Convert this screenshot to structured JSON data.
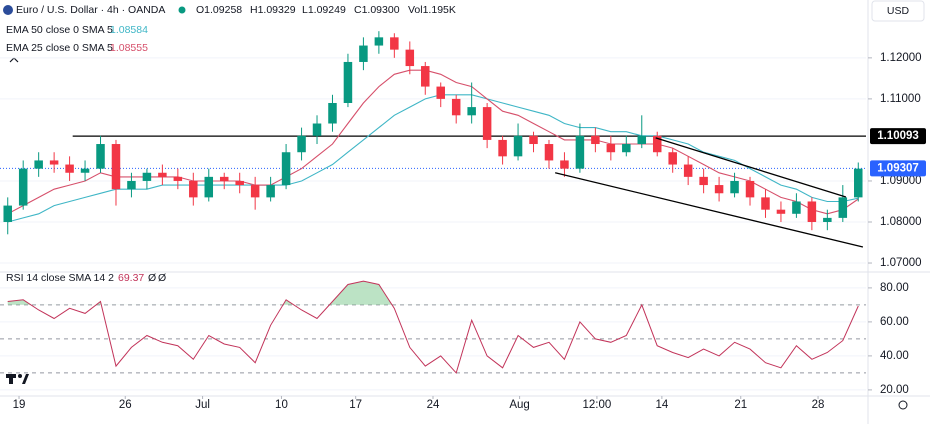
{
  "chart_data": [
    {
      "type": "candlestick",
      "title": "Euro / U.S. Dollar · 4h · OANDA",
      "quote": [
        "O1.09258",
        "H1.09329",
        "L1.09249",
        "C1.09300",
        "Vol1.195K"
      ],
      "currency": "USD",
      "up_color": "#089981",
      "down_color": "#f23645",
      "open": [
        1.08,
        1.084,
        1.093,
        1.095,
        1.094,
        1.092,
        1.093,
        1.099,
        1.088,
        1.09,
        1.092,
        1.091,
        1.09,
        1.086,
        1.091,
        1.09,
        1.089,
        1.086,
        1.089,
        1.097,
        1.101,
        1.104,
        1.109,
        1.119,
        1.123,
        1.125,
        1.122,
        1.118,
        1.113,
        1.11,
        1.106,
        1.108,
        1.1,
        1.096,
        1.101,
        1.099,
        1.095,
        1.093,
        1.101,
        1.099,
        1.097,
        1.099,
        1.101,
        1.097,
        1.094,
        1.091,
        1.089,
        1.087,
        1.09,
        1.086,
        1.083,
        1.082,
        1.085,
        1.08,
        1.081,
        1.086
      ],
      "high": [
        1.086,
        1.095,
        1.097,
        1.097,
        1.096,
        1.095,
        1.101,
        1.1,
        1.092,
        1.093,
        1.094,
        1.093,
        1.092,
        1.093,
        1.092,
        1.092,
        1.091,
        1.091,
        1.099,
        1.103,
        1.106,
        1.111,
        1.121,
        1.125,
        1.1265,
        1.126,
        1.124,
        1.119,
        1.114,
        1.111,
        1.114,
        1.109,
        1.101,
        1.104,
        1.102,
        1.1,
        1.097,
        1.104,
        1.103,
        1.101,
        1.101,
        1.106,
        1.102,
        1.098,
        1.096,
        1.093,
        1.091,
        1.092,
        1.091,
        1.088,
        1.085,
        1.087,
        1.086,
        1.083,
        1.089,
        1.0945
      ],
      "low": [
        1.077,
        1.083,
        1.091,
        1.092,
        1.09,
        1.09,
        1.092,
        1.084,
        1.086,
        1.088,
        1.089,
        1.088,
        1.084,
        1.085,
        1.088,
        1.087,
        1.083,
        1.085,
        1.088,
        1.095,
        1.099,
        1.102,
        1.108,
        1.117,
        1.121,
        1.12,
        1.116,
        1.111,
        1.108,
        1.104,
        1.104,
        1.098,
        1.094,
        1.095,
        1.097,
        1.093,
        1.091,
        1.092,
        1.097,
        1.095,
        1.096,
        1.098,
        1.096,
        1.092,
        1.089,
        1.087,
        1.085,
        1.086,
        1.084,
        1.081,
        1.08,
        1.081,
        1.078,
        1.078,
        1.08,
        1.085
      ],
      "close": [
        1.084,
        1.093,
        1.095,
        1.094,
        1.092,
        1.093,
        1.099,
        1.088,
        1.09,
        1.092,
        1.091,
        1.09,
        1.086,
        1.091,
        1.09,
        1.089,
        1.086,
        1.089,
        1.097,
        1.101,
        1.104,
        1.109,
        1.119,
        1.123,
        1.125,
        1.122,
        1.118,
        1.113,
        1.11,
        1.106,
        1.108,
        1.1,
        1.096,
        1.101,
        1.099,
        1.095,
        1.093,
        1.101,
        1.099,
        1.097,
        1.099,
        1.101,
        1.097,
        1.094,
        1.091,
        1.089,
        1.087,
        1.09,
        1.086,
        1.083,
        1.082,
        1.085,
        1.08,
        1.081,
        1.086,
        1.093
      ],
      "series": [
        {
          "name": "EMA 50 close 0 SMA 5",
          "last": "1.08584",
          "color": "#3fb6c6",
          "values": [
            1.08,
            1.081,
            1.082,
            1.084,
            1.085,
            1.086,
            1.087,
            1.088,
            1.088,
            1.088,
            1.089,
            1.089,
            1.089,
            1.089,
            1.089,
            1.089,
            1.089,
            1.089,
            1.089,
            1.09,
            1.092,
            1.094,
            1.097,
            1.1,
            1.103,
            1.106,
            1.108,
            1.11,
            1.111,
            1.111,
            1.111,
            1.11,
            1.109,
            1.108,
            1.107,
            1.106,
            1.104,
            1.103,
            1.103,
            1.102,
            1.102,
            1.101,
            1.101,
            1.1,
            1.099,
            1.097,
            1.096,
            1.095,
            1.093,
            1.091,
            1.089,
            1.088,
            1.086,
            1.085,
            1.085,
            1.0858
          ]
        },
        {
          "name": "EMA 25 close 0 SMA 5",
          "last": "1.08555",
          "color": "#d6506b",
          "values": [
            1.082,
            1.084,
            1.086,
            1.088,
            1.089,
            1.09,
            1.092,
            1.091,
            1.091,
            1.091,
            1.091,
            1.091,
            1.09,
            1.09,
            1.09,
            1.09,
            1.089,
            1.089,
            1.091,
            1.093,
            1.096,
            1.099,
            1.104,
            1.109,
            1.113,
            1.116,
            1.117,
            1.117,
            1.116,
            1.114,
            1.113,
            1.11,
            1.107,
            1.106,
            1.104,
            1.102,
            1.1,
            1.1,
            1.1,
            1.099,
            1.099,
            1.099,
            1.099,
            1.098,
            1.096,
            1.094,
            1.092,
            1.091,
            1.09,
            1.088,
            1.086,
            1.085,
            1.083,
            1.082,
            1.083,
            1.0856
          ]
        }
      ],
      "xlim": [
        -0.5,
        55.5
      ],
      "xticks": [
        {
          "value": 0.73,
          "label": "19"
        },
        {
          "value": 7.6,
          "label": "26"
        },
        {
          "value": 12.6,
          "label": "Jul"
        },
        {
          "value": 17.7,
          "label": "10"
        },
        {
          "value": 22.5,
          "label": "17"
        },
        {
          "value": 27.5,
          "label": "24"
        },
        {
          "value": 33.1,
          "label": "Aug"
        },
        {
          "value": 38.1,
          "label": "12:00"
        },
        {
          "value": 42.3,
          "label": "14"
        },
        {
          "value": 47.4,
          "label": "21"
        },
        {
          "value": 52.4,
          "label": "28"
        }
      ],
      "ylim": [
        1.0683,
        1.1341
      ],
      "yticks": [
        {
          "value": 1.12,
          "label": "1.12000"
        },
        {
          "value": 1.11,
          "label": "1.11000"
        },
        {
          "value": 1.09,
          "label": "1.09000"
        },
        {
          "value": 1.08,
          "label": "1.08000"
        },
        {
          "value": 1.07,
          "label": "1.07000"
        }
      ],
      "hlines": [
        {
          "value": 1.10093,
          "label": "1.10093",
          "color": "#000000",
          "style": "solid",
          "x_start": 4.2
        },
        {
          "value": 1.09307,
          "label": "1.09307",
          "color": "#2962ff",
          "style": "dotted",
          "x_start": -0.5
        }
      ],
      "trendlines": [
        {
          "x": [
            41.9,
            54.2
          ],
          "y": [
            1.1005,
            1.0861
          ],
          "color": "#000000"
        },
        {
          "x": [
            35.4,
            55.3
          ],
          "y": [
            1.092,
            1.0739
          ],
          "color": "#000000"
        }
      ]
    },
    {
      "type": "line",
      "title": "RSI 14 close SMA 14 2",
      "legend_texts": [
        "69.37",
        "Ø",
        "Ø"
      ],
      "color": "#c2345a",
      "overbought_fill": "#8fd19e",
      "values": [
        72,
        73,
        67,
        62,
        68,
        65,
        72,
        34,
        45,
        52,
        48,
        46,
        38,
        52,
        47,
        45,
        36,
        58,
        73,
        67,
        62,
        72,
        82,
        84,
        82,
        68,
        45,
        34,
        40,
        30,
        61,
        40,
        33,
        52,
        45,
        48,
        38,
        60,
        50,
        48,
        52,
        70,
        46,
        42,
        39,
        44,
        40,
        48,
        44,
        36,
        33,
        46,
        38,
        42,
        49,
        69.37
      ],
      "xlim": [
        -0.5,
        55.5
      ],
      "ylim": [
        17,
        87
      ],
      "yticks": [
        {
          "value": 80,
          "label": "80.00"
        },
        {
          "value": 60,
          "label": "60.00"
        },
        {
          "value": 40,
          "label": "40.00"
        },
        {
          "value": 20,
          "label": "20.00"
        }
      ],
      "levels": [
        70,
        50,
        30
      ]
    }
  ]
}
